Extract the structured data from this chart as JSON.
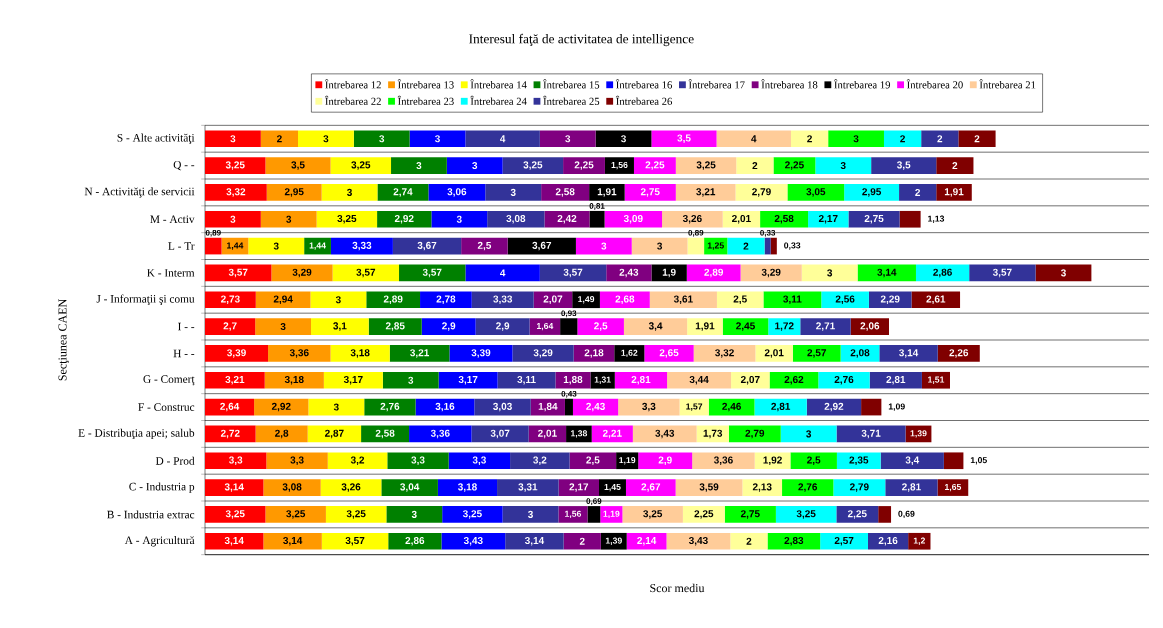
{
  "chart_data": {
    "type": "bar",
    "orientation": "horizontal",
    "stacked": true,
    "title": "Interesul faţă de activitatea de intelligence",
    "xlabel": "Scor mediu",
    "ylabel": "Secţiunea CAEN",
    "categories": [
      "S - Alte activităţi",
      "Q - -",
      "N - Activităţi de servicii",
      "M - Activ",
      "L - Tr",
      "K - Interm",
      "J - Informaţii şi comu",
      "I - -",
      "H - -",
      "G - Comerţ",
      "F - Construc",
      "E - Distribuţia apei; salub",
      "D - Prod",
      "C - Industria p",
      "B - Industria extrac",
      "A - Agricultură"
    ],
    "tick_labels": "y",
    "grid": "y",
    "legend": "top",
    "series": [
      {
        "name": "Întrebarea 12",
        "color": "#ff0000",
        "values": [
          3,
          3.25,
          3.32,
          3,
          0.89,
          3.57,
          2.73,
          2.7,
          3.39,
          3.21,
          2.64,
          2.72,
          3.3,
          3.14,
          3.25,
          3.14
        ],
        "value_labels": [
          "3",
          "3,25",
          "3,32",
          "3",
          "0,89",
          "3,57",
          "2,73",
          "2,7",
          "3,39",
          "3,21",
          "2,64",
          "2,72",
          "3,3",
          "3,14",
          "3,25",
          "3,14"
        ]
      },
      {
        "name": "Întrebarea 13",
        "color": "#ff9900",
        "values": [
          2,
          3.5,
          2.95,
          3,
          1.44,
          3.29,
          2.94,
          3,
          3.36,
          3.18,
          2.92,
          2.8,
          3.3,
          3.08,
          3.25,
          3.14
        ],
        "value_labels": [
          "2",
          "3,5",
          "2,95",
          "3",
          "1,44",
          "3,29",
          "2,94",
          "3",
          "3,36",
          "3,18",
          "2,92",
          "2,8",
          "3,3",
          "3,08",
          "3,25",
          "3,14"
        ]
      },
      {
        "name": "Întrebarea 14",
        "color": "#ffff00",
        "values": [
          3,
          3.25,
          3,
          3.25,
          3,
          3.57,
          3,
          3.1,
          3.18,
          3.17,
          3,
          2.87,
          3.2,
          3.26,
          3.25,
          3.57
        ],
        "value_labels": [
          "3",
          "3,25",
          "3",
          "3,25",
          "3",
          "3,57",
          "3",
          "3,1",
          "3,18",
          "3,17",
          "3",
          "2,87",
          "3,2",
          "3,26",
          "3,25",
          "3,57"
        ]
      },
      {
        "name": "Întrebarea 15",
        "color": "#008000",
        "values": [
          3,
          3,
          2.74,
          2.92,
          1.44,
          3.57,
          2.89,
          2.85,
          3.21,
          3,
          2.76,
          2.58,
          3.3,
          3.04,
          3,
          2.86
        ],
        "value_labels": [
          "3",
          "3",
          "2,74",
          "2,92",
          "1,44",
          "3,57",
          "2,89",
          "2,85",
          "3,21",
          "3",
          "2,76",
          "2,58",
          "3,3",
          "3,04",
          "3",
          "2,86"
        ]
      },
      {
        "name": "Întrebarea 16",
        "color": "#0000ff",
        "values": [
          3,
          3,
          3.06,
          3,
          3.33,
          4,
          2.78,
          2.9,
          3.39,
          3.17,
          3.16,
          3.36,
          3.3,
          3.18,
          3.25,
          3.43
        ],
        "value_labels": [
          "3",
          "3",
          "3,06",
          "3",
          "3,33",
          "4",
          "2,78",
          "2,9",
          "3,39",
          "3,17",
          "3,16",
          "3,36",
          "3,3",
          "3,18",
          "3,25",
          "3,43"
        ]
      },
      {
        "name": "Întrebarea 17",
        "color": "#333399",
        "values": [
          4,
          3.25,
          3,
          3.08,
          3.67,
          3.57,
          3.33,
          2.9,
          3.29,
          3.11,
          3.03,
          3.07,
          3.2,
          3.31,
          3,
          3.14
        ],
        "value_labels": [
          "4",
          "3,25",
          "3",
          "3,08",
          "3,67",
          "3,57",
          "3,33",
          "2,9",
          "3,29",
          "3,11",
          "3,03",
          "3,07",
          "3,2",
          "3,31",
          "3",
          "3,14"
        ]
      },
      {
        "name": "Întrebarea 18",
        "color": "#800080",
        "values": [
          3,
          2.25,
          2.58,
          2.42,
          2.5,
          2.43,
          2.07,
          1.64,
          2.18,
          1.88,
          1.84,
          2.01,
          2.5,
          2.17,
          1.56,
          2
        ],
        "value_labels": [
          "3",
          "2,25",
          "2,58",
          "2,42",
          "2,5",
          "2,43",
          "2,07",
          "1,64",
          "2,18",
          "1,88",
          "1,84",
          "2,01",
          "2,5",
          "2,17",
          "1,56",
          "2"
        ]
      },
      {
        "name": "Întrebarea 19",
        "color": "#000000",
        "values": [
          3,
          1.56,
          1.91,
          0.81,
          3.67,
          1.9,
          1.49,
          0.93,
          1.62,
          1.31,
          0.43,
          1.38,
          1.19,
          1.45,
          0.69,
          1.39
        ],
        "value_labels": [
          "3",
          "1,56",
          "1,91",
          "0,81",
          "3,67",
          "1,9",
          "1,49",
          "0,93",
          "1,62",
          "1,31",
          "0,43",
          "1,38",
          "1,19",
          "1,45",
          "0,69",
          "1,39"
        ]
      },
      {
        "name": "Întrebarea 20",
        "color": "#ff00ff",
        "values": [
          3.5,
          2.25,
          2.75,
          3.09,
          3,
          2.89,
          2.68,
          2.5,
          2.65,
          2.81,
          2.43,
          2.21,
          2.9,
          2.67,
          1.19,
          2.14
        ],
        "value_labels": [
          "3,5",
          "2,25",
          "2,75",
          "3,09",
          "3",
          "2,89",
          "2,68",
          "2,5",
          "2,65",
          "2,81",
          "2,43",
          "2,21",
          "2,9",
          "2,67",
          "1,19",
          "2,14"
        ]
      },
      {
        "name": "Întrebarea 21",
        "color": "#ffcc99",
        "values": [
          4,
          3.25,
          3.21,
          3.26,
          3,
          3.29,
          3.61,
          3.4,
          3.32,
          3.44,
          3.3,
          3.43,
          3.36,
          3.59,
          3.25,
          3.43
        ],
        "value_labels": [
          "4",
          "3,25",
          "3,21",
          "3,26",
          "3",
          "3,29",
          "3,61",
          "3,4",
          "3,32",
          "3,44",
          "3,3",
          "3,43",
          "3,36",
          "3,59",
          "3,25",
          "3,43"
        ]
      },
      {
        "name": "Întrebarea 22",
        "color": "#ffff99",
        "values": [
          2,
          2,
          2.79,
          2.01,
          0.89,
          3,
          2.5,
          1.91,
          2.01,
          2.07,
          1.57,
          1.73,
          1.92,
          2.13,
          2.25,
          2
        ],
        "value_labels": [
          "2",
          "2",
          "2,79",
          "2,01",
          "0,89",
          "3",
          "2,5",
          "1,91",
          "2,01",
          "2,07",
          "1,57",
          "1,73",
          "1,92",
          "2,13",
          "2,25",
          "2"
        ]
      },
      {
        "name": "Întrebarea 23",
        "color": "#00ff00",
        "values": [
          3,
          2.25,
          3.05,
          2.58,
          1.25,
          3.14,
          3.11,
          2.45,
          2.57,
          2.62,
          2.46,
          2.79,
          2.5,
          2.76,
          2.75,
          2.83
        ],
        "value_labels": [
          "3",
          "2,25",
          "3,05",
          "2,58",
          "1,25",
          "3,14",
          "3,11",
          "2,45",
          "2,57",
          "2,62",
          "2,46",
          "2,79",
          "2,5",
          "2,76",
          "2,75",
          "2,83"
        ]
      },
      {
        "name": "Întrebarea 24",
        "color": "#00ffff",
        "values": [
          2,
          3,
          2.95,
          2.17,
          2,
          2.86,
          2.56,
          1.72,
          2.08,
          2.76,
          2.81,
          3,
          2.35,
          2.79,
          3.25,
          2.57
        ],
        "value_labels": [
          "2",
          "3",
          "2,95",
          "2,17",
          "2",
          "2,86",
          "2,56",
          "1,72",
          "2,08",
          "2,76",
          "2,81",
          "3",
          "2,35",
          "2,79",
          "3,25",
          "2,57"
        ]
      },
      {
        "name": "Întrebarea 25",
        "color": "#333399",
        "values": [
          2,
          3.5,
          2,
          2.75,
          0.33,
          3.57,
          2.29,
          2.71,
          3.14,
          2.81,
          2.92,
          3.71,
          3.4,
          2.81,
          2.25,
          2.16
        ],
        "value_labels": [
          "2",
          "3,5",
          "2",
          "2,75",
          "0,33",
          "3,57",
          "2,29",
          "2,71",
          "3,14",
          "2,81",
          "2,92",
          "3,71",
          "3,4",
          "2,81",
          "2,25",
          "2,16"
        ]
      },
      {
        "name": "Întrebarea 26",
        "color": "#800000",
        "values": [
          2,
          2,
          1.91,
          1.13,
          0.33,
          3,
          2.61,
          2.06,
          2.26,
          1.51,
          1.09,
          1.39,
          1.05,
          1.65,
          0.69,
          1.2
        ],
        "value_labels": [
          "2",
          "2",
          "1,91",
          "1,13",
          "0,33",
          "3",
          "2,61",
          "2,06",
          "2,26",
          "1,51",
          "1,09",
          "1,39",
          "1,05",
          "1,65",
          "0,69",
          "1,2"
        ]
      }
    ]
  }
}
